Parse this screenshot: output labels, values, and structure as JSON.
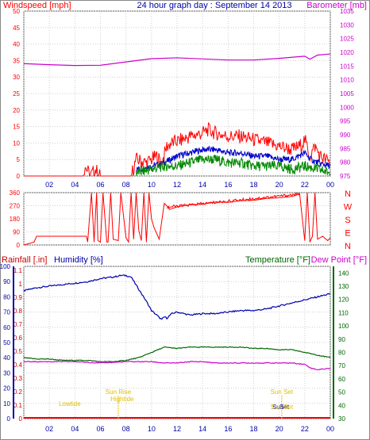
{
  "header": {
    "windspeed_label": "Windspeed [mph]",
    "title": "24 hour graph day : September 14 2013",
    "barometer_label": "Barometer [mb]"
  },
  "panel3_header": {
    "rainfall_label": "Rainfall [.in]",
    "humidity_label": "Humidity [%]",
    "temperature_label": "Temperature [°F]",
    "dewpoint_label": "Dew Point [°F]"
  },
  "colors": {
    "wind": "#ff0000",
    "gust_avg": "#0000cc",
    "wind_low": "#008800",
    "barometer": "#cc00cc",
    "humidity": "#0000aa",
    "temperature": "#006600",
    "dewpoint": "#cc00cc",
    "rain": "#ff0000",
    "events": "#e0c000",
    "grid": "#cfcfcf"
  },
  "chart_data": [
    {
      "type": "line",
      "name": "wind-barometer",
      "x_ticks": [
        "02",
        "04",
        "06",
        "08",
        "10",
        "12",
        "14",
        "16",
        "18",
        "20",
        "22",
        "00"
      ],
      "y_left_ticks": [
        0,
        5,
        10,
        15,
        20,
        25,
        30,
        35,
        40,
        45,
        50
      ],
      "y_right_ticks": [
        975,
        980,
        985,
        990,
        995,
        1000,
        1005,
        1010,
        1015,
        1020,
        1025,
        1030,
        1035
      ],
      "ylim_left": [
        0,
        50
      ],
      "ylim_right": [
        975,
        1035
      ],
      "barometer": {
        "x": [
          0,
          2,
          4,
          6,
          8,
          10,
          12,
          14,
          16,
          18,
          20,
          22,
          22.4,
          23,
          24
        ],
        "values": [
          1015.9,
          1015.5,
          1015.2,
          1015.3,
          1016.5,
          1017.7,
          1018.0,
          1017.6,
          1017.2,
          1017.2,
          1017.8,
          1018.6,
          1017.5,
          1019.0,
          1019.4
        ]
      },
      "wind": {
        "x": [
          0,
          4.6,
          4.8,
          5.2,
          5.6,
          6.0,
          7.0,
          8.4,
          8.8,
          9.6,
          10.4,
          10.8,
          11.2,
          11.6,
          12.4,
          13.0,
          14.0,
          14.4,
          15.0,
          16.0,
          17.0,
          18.0,
          19.0,
          20.0,
          21.0,
          21.6,
          22.0,
          22.4,
          22.8,
          23.2,
          23.6,
          24.0
        ],
        "values": [
          0,
          0,
          3,
          0,
          2,
          0,
          0,
          0,
          5,
          4,
          6,
          4,
          9,
          10,
          11,
          12,
          13,
          14,
          13,
          12,
          12,
          11,
          10,
          9,
          8,
          9,
          11,
          6,
          9,
          6,
          5,
          4
        ]
      },
      "gust_avg": {
        "x": [
          8.8,
          10,
          11,
          12,
          13,
          14,
          15,
          16,
          17,
          18,
          19,
          20,
          21,
          22,
          22.5,
          23,
          24
        ],
        "values": [
          2,
          3,
          4,
          6,
          7,
          8,
          8,
          7,
          7,
          6,
          6,
          5,
          5,
          7,
          5,
          4,
          3
        ]
      },
      "wind_low": {
        "x": [
          8.8,
          10,
          11,
          12,
          13,
          14,
          15,
          16,
          17,
          18,
          19,
          20,
          21,
          22,
          23,
          24
        ],
        "values": [
          1,
          2,
          3,
          3,
          4,
          5,
          5,
          4,
          4,
          3,
          3,
          3,
          2,
          3,
          2,
          1
        ]
      }
    },
    {
      "type": "line",
      "name": "wind-direction",
      "y_left_ticks": [
        0,
        90,
        180,
        270,
        360
      ],
      "y_right_labels": [
        "N",
        "W",
        "S",
        "E",
        "N"
      ],
      "ylim": [
        0,
        360
      ],
      "direction": {
        "x": [
          0,
          0.8,
          1.0,
          4.9,
          5.0,
          5.3,
          5.5,
          5.7,
          5.8,
          6.0,
          6.2,
          6.5,
          6.6,
          6.8,
          7.0,
          7.4,
          7.6,
          8.0,
          8.2,
          8.4,
          8.6,
          8.8,
          9.0,
          9.2,
          9.4,
          9.6,
          9.8,
          10.0,
          10.2,
          10.6,
          11.0,
          11.2,
          11.4,
          12,
          13,
          14,
          15,
          16,
          17,
          18,
          19,
          20,
          21,
          21.6,
          22.0,
          22.2,
          22.4,
          22.6,
          22.8,
          23.0,
          23.4,
          23.8,
          24
        ],
        "values": [
          0,
          20,
          60,
          60,
          20,
          360,
          20,
          360,
          30,
          20,
          360,
          20,
          20,
          360,
          40,
          30,
          360,
          50,
          20,
          360,
          40,
          360,
          100,
          30,
          360,
          20,
          360,
          180,
          120,
          40,
          280,
          270,
          240,
          260,
          270,
          280,
          300,
          290,
          300,
          310,
          320,
          330,
          340,
          350,
          30,
          360,
          20,
          60,
          360,
          40,
          60,
          30,
          50
        ]
      }
    },
    {
      "type": "line",
      "name": "humidity-temperature-rain",
      "x_ticks": [
        "02",
        "04",
        "06",
        "08",
        "10",
        "12",
        "14",
        "16",
        "18",
        "20",
        "22",
        "00"
      ],
      "y_left_ticks": [
        0,
        10,
        20,
        30,
        40,
        50,
        60,
        70,
        80,
        90,
        100
      ],
      "y_rain_ticks": [
        "0",
        "0.1",
        "0.2",
        "0.3",
        "0.4",
        "0.5",
        "0.6",
        "0.7",
        "0.8",
        "0.9",
        "1",
        "1.1"
      ],
      "y_right_ticks": [
        30,
        40,
        50,
        60,
        70,
        80,
        90,
        100,
        110,
        120,
        130,
        140
      ],
      "ylim_left": [
        0,
        100
      ],
      "ylim_right": [
        30,
        145
      ],
      "humidity": {
        "x": [
          0,
          1,
          2,
          3,
          4,
          5,
          6,
          7,
          7.6,
          8,
          8.4,
          9,
          9.6,
          10,
          10.4,
          10.8,
          11,
          11.2,
          11.6,
          12,
          13,
          14,
          15,
          16,
          17,
          18,
          19,
          20,
          21,
          22,
          23,
          24
        ],
        "values": [
          84,
          86,
          87,
          88,
          89,
          90,
          92,
          93,
          94,
          94,
          93,
          85,
          77,
          71,
          68,
          65,
          67,
          66,
          69,
          70,
          68,
          69,
          69,
          70,
          71,
          71,
          72,
          74,
          76,
          78,
          80,
          82
        ]
      },
      "temperature": {
        "x": [
          0,
          1,
          2,
          3,
          4,
          5,
          6,
          7,
          8,
          9,
          10,
          11,
          12,
          13,
          14,
          15,
          16,
          17,
          18,
          19,
          20,
          21,
          22,
          23,
          24
        ],
        "values": [
          76,
          75,
          75,
          74,
          74,
          74,
          73,
          73,
          74,
          76,
          80,
          84,
          83,
          84,
          84,
          84,
          84,
          84,
          83,
          83,
          82,
          82,
          80,
          78,
          76
        ]
      },
      "dewpoint": {
        "x": [
          0,
          2,
          4,
          6,
          8,
          9,
          10,
          11,
          12,
          13,
          14,
          15,
          16,
          17,
          18,
          19,
          20,
          21,
          22,
          22.5,
          23,
          24
        ],
        "values": [
          73,
          73,
          73,
          72,
          73,
          73,
          73,
          72,
          72,
          73,
          73,
          72,
          72,
          72,
          72,
          72,
          72,
          72,
          71,
          68,
          67,
          68
        ]
      },
      "rain": {
        "x": [
          0,
          24
        ],
        "values": [
          0,
          0
        ]
      },
      "events": [
        {
          "label": "Lowtide",
          "x": 3.6
        },
        {
          "label": "Sun Rise",
          "x": 7.4
        },
        {
          "label": "Hightide",
          "x": 7.7
        },
        {
          "label": "Sun Set",
          "x": 20.2
        },
        {
          "label": "Sun",
          "x": 19.9
        },
        {
          "label": "Set",
          "x": 20.4
        },
        {
          "label": "Sun Set",
          "x": 20.2
        }
      ]
    }
  ]
}
